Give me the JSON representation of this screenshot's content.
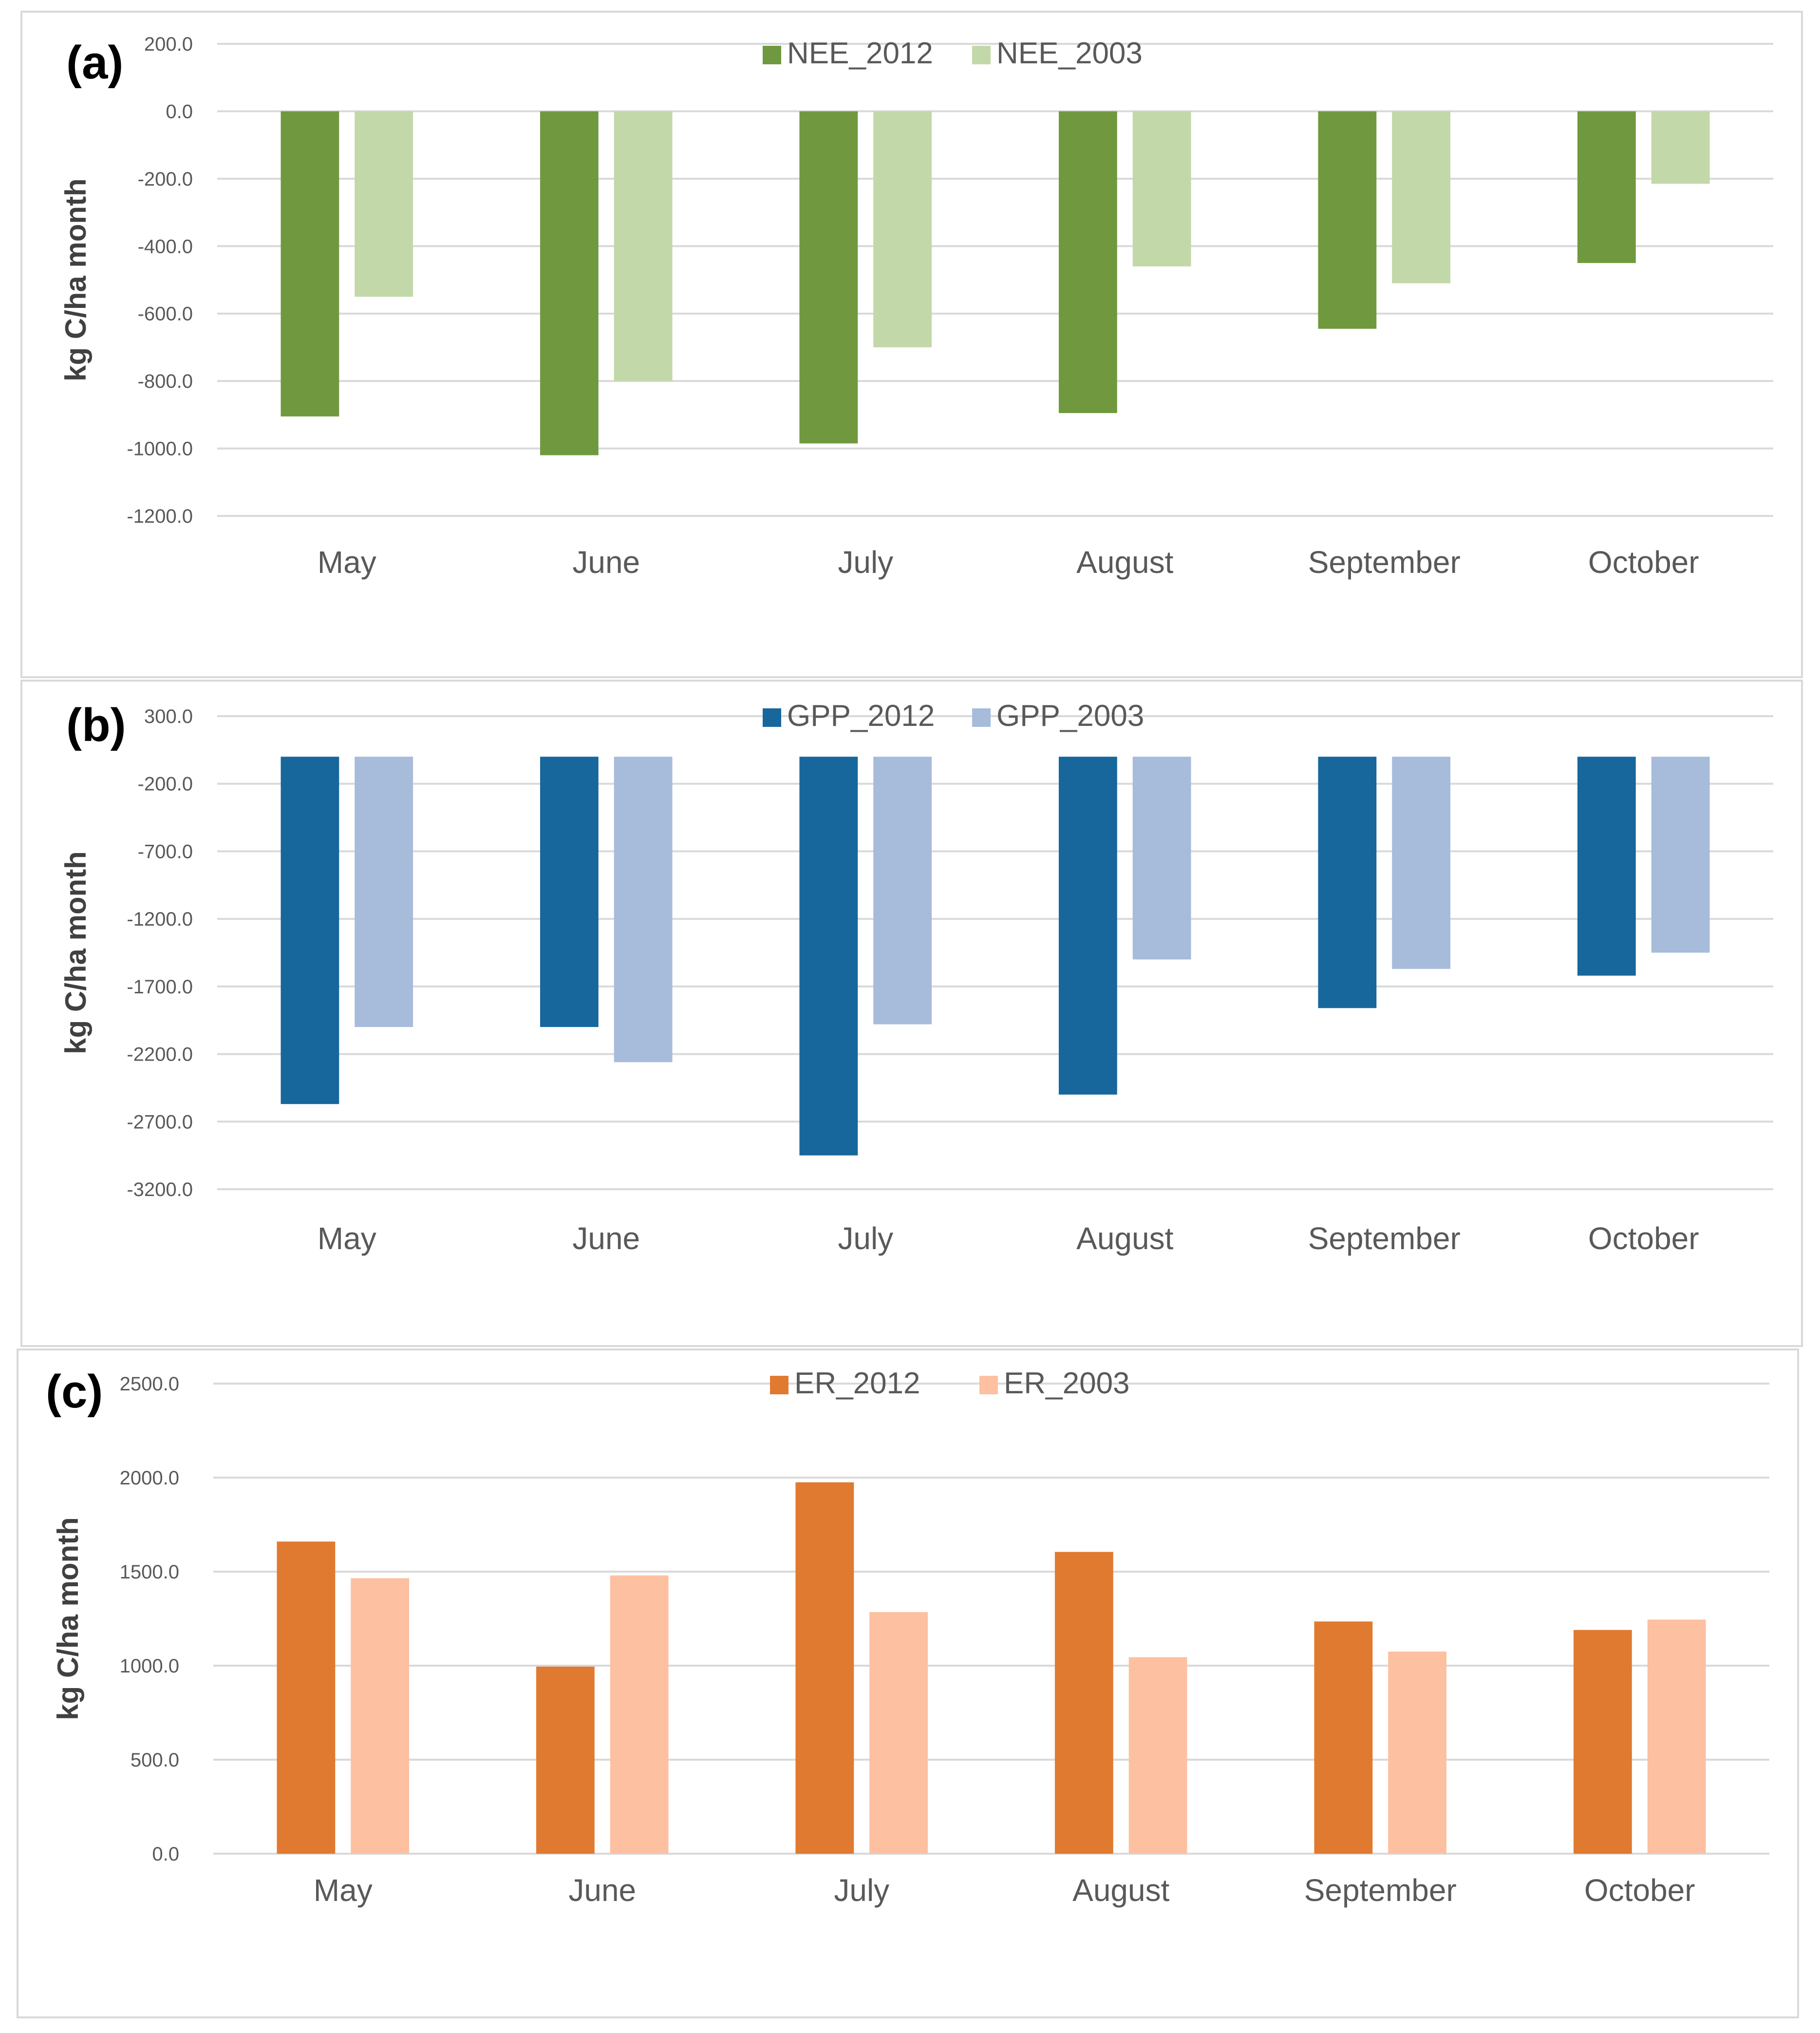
{
  "chart_data": [
    {
      "id": "a",
      "type": "bar",
      "panel_label": "(a)",
      "categories": [
        "May",
        "June",
        "July",
        "August",
        "September",
        "October"
      ],
      "series": [
        {
          "name": "NEE_2012",
          "color": "#70993f",
          "values": [
            -905,
            -1020,
            -985,
            -895,
            -645,
            -450
          ]
        },
        {
          "name": "NEE_2003",
          "color": "#c2d8a9",
          "values": [
            -550,
            -800,
            -700,
            -460,
            -510,
            -215
          ]
        }
      ],
      "ylabel": "kg C/ha month",
      "ylim": [
        -1200,
        200
      ],
      "yticks": [
        200,
        0,
        -200,
        -400,
        -600,
        -800,
        -1000,
        -1200
      ],
      "ytick_labels": [
        "200.0",
        "0.0",
        "-200.0",
        "-400.0",
        "-600.0",
        "-800.0",
        "-1000.0",
        "-1200.0"
      ],
      "baseline": 0,
      "grid": true,
      "legend_position": "top-center"
    },
    {
      "id": "b",
      "type": "bar",
      "panel_label": "(b)",
      "categories": [
        "May",
        "June",
        "July",
        "August",
        "September",
        "October"
      ],
      "series": [
        {
          "name": "GPP_2012",
          "color": "#17679d",
          "values": [
            -2570,
            -2000,
            -2950,
            -2500,
            -1860,
            -1620
          ]
        },
        {
          "name": "GPP_2003",
          "color": "#a7bbdb",
          "values": [
            -2000,
            -2260,
            -1980,
            -1500,
            -1570,
            -1450
          ]
        }
      ],
      "ylabel": "kg C/ha month",
      "ylim": [
        -3200,
        300
      ],
      "yticks": [
        300,
        -200,
        -700,
        -1200,
        -1700,
        -2200,
        -2700,
        -3200
      ],
      "ytick_labels": [
        "300.0",
        "-200.0",
        "-700.0",
        "-1200.0",
        "-1700.0",
        "-2200.0",
        "-2700.0",
        "-3200.0"
      ],
      "baseline": 0,
      "grid": true,
      "legend_position": "top-center"
    },
    {
      "id": "c",
      "type": "bar",
      "panel_label": "(c)",
      "categories": [
        "May",
        "June",
        "July",
        "August",
        "September",
        "October"
      ],
      "series": [
        {
          "name": "ER_2012",
          "color": "#e07a30",
          "values": [
            1660,
            995,
            1975,
            1605,
            1235,
            1190
          ]
        },
        {
          "name": "ER_2003",
          "color": "#fdc0a0",
          "values": [
            1465,
            1480,
            1285,
            1045,
            1075,
            1245
          ]
        }
      ],
      "ylabel": "kg C/ha month",
      "ylim": [
        0,
        2500
      ],
      "yticks": [
        2500,
        2000,
        1500,
        1000,
        500,
        0
      ],
      "ytick_labels": [
        "2500.0",
        "2000.0",
        "1500.0",
        "1000.0",
        "500.0",
        "0.0"
      ],
      "baseline": 0,
      "grid": true,
      "legend_position": "top-center"
    }
  ]
}
